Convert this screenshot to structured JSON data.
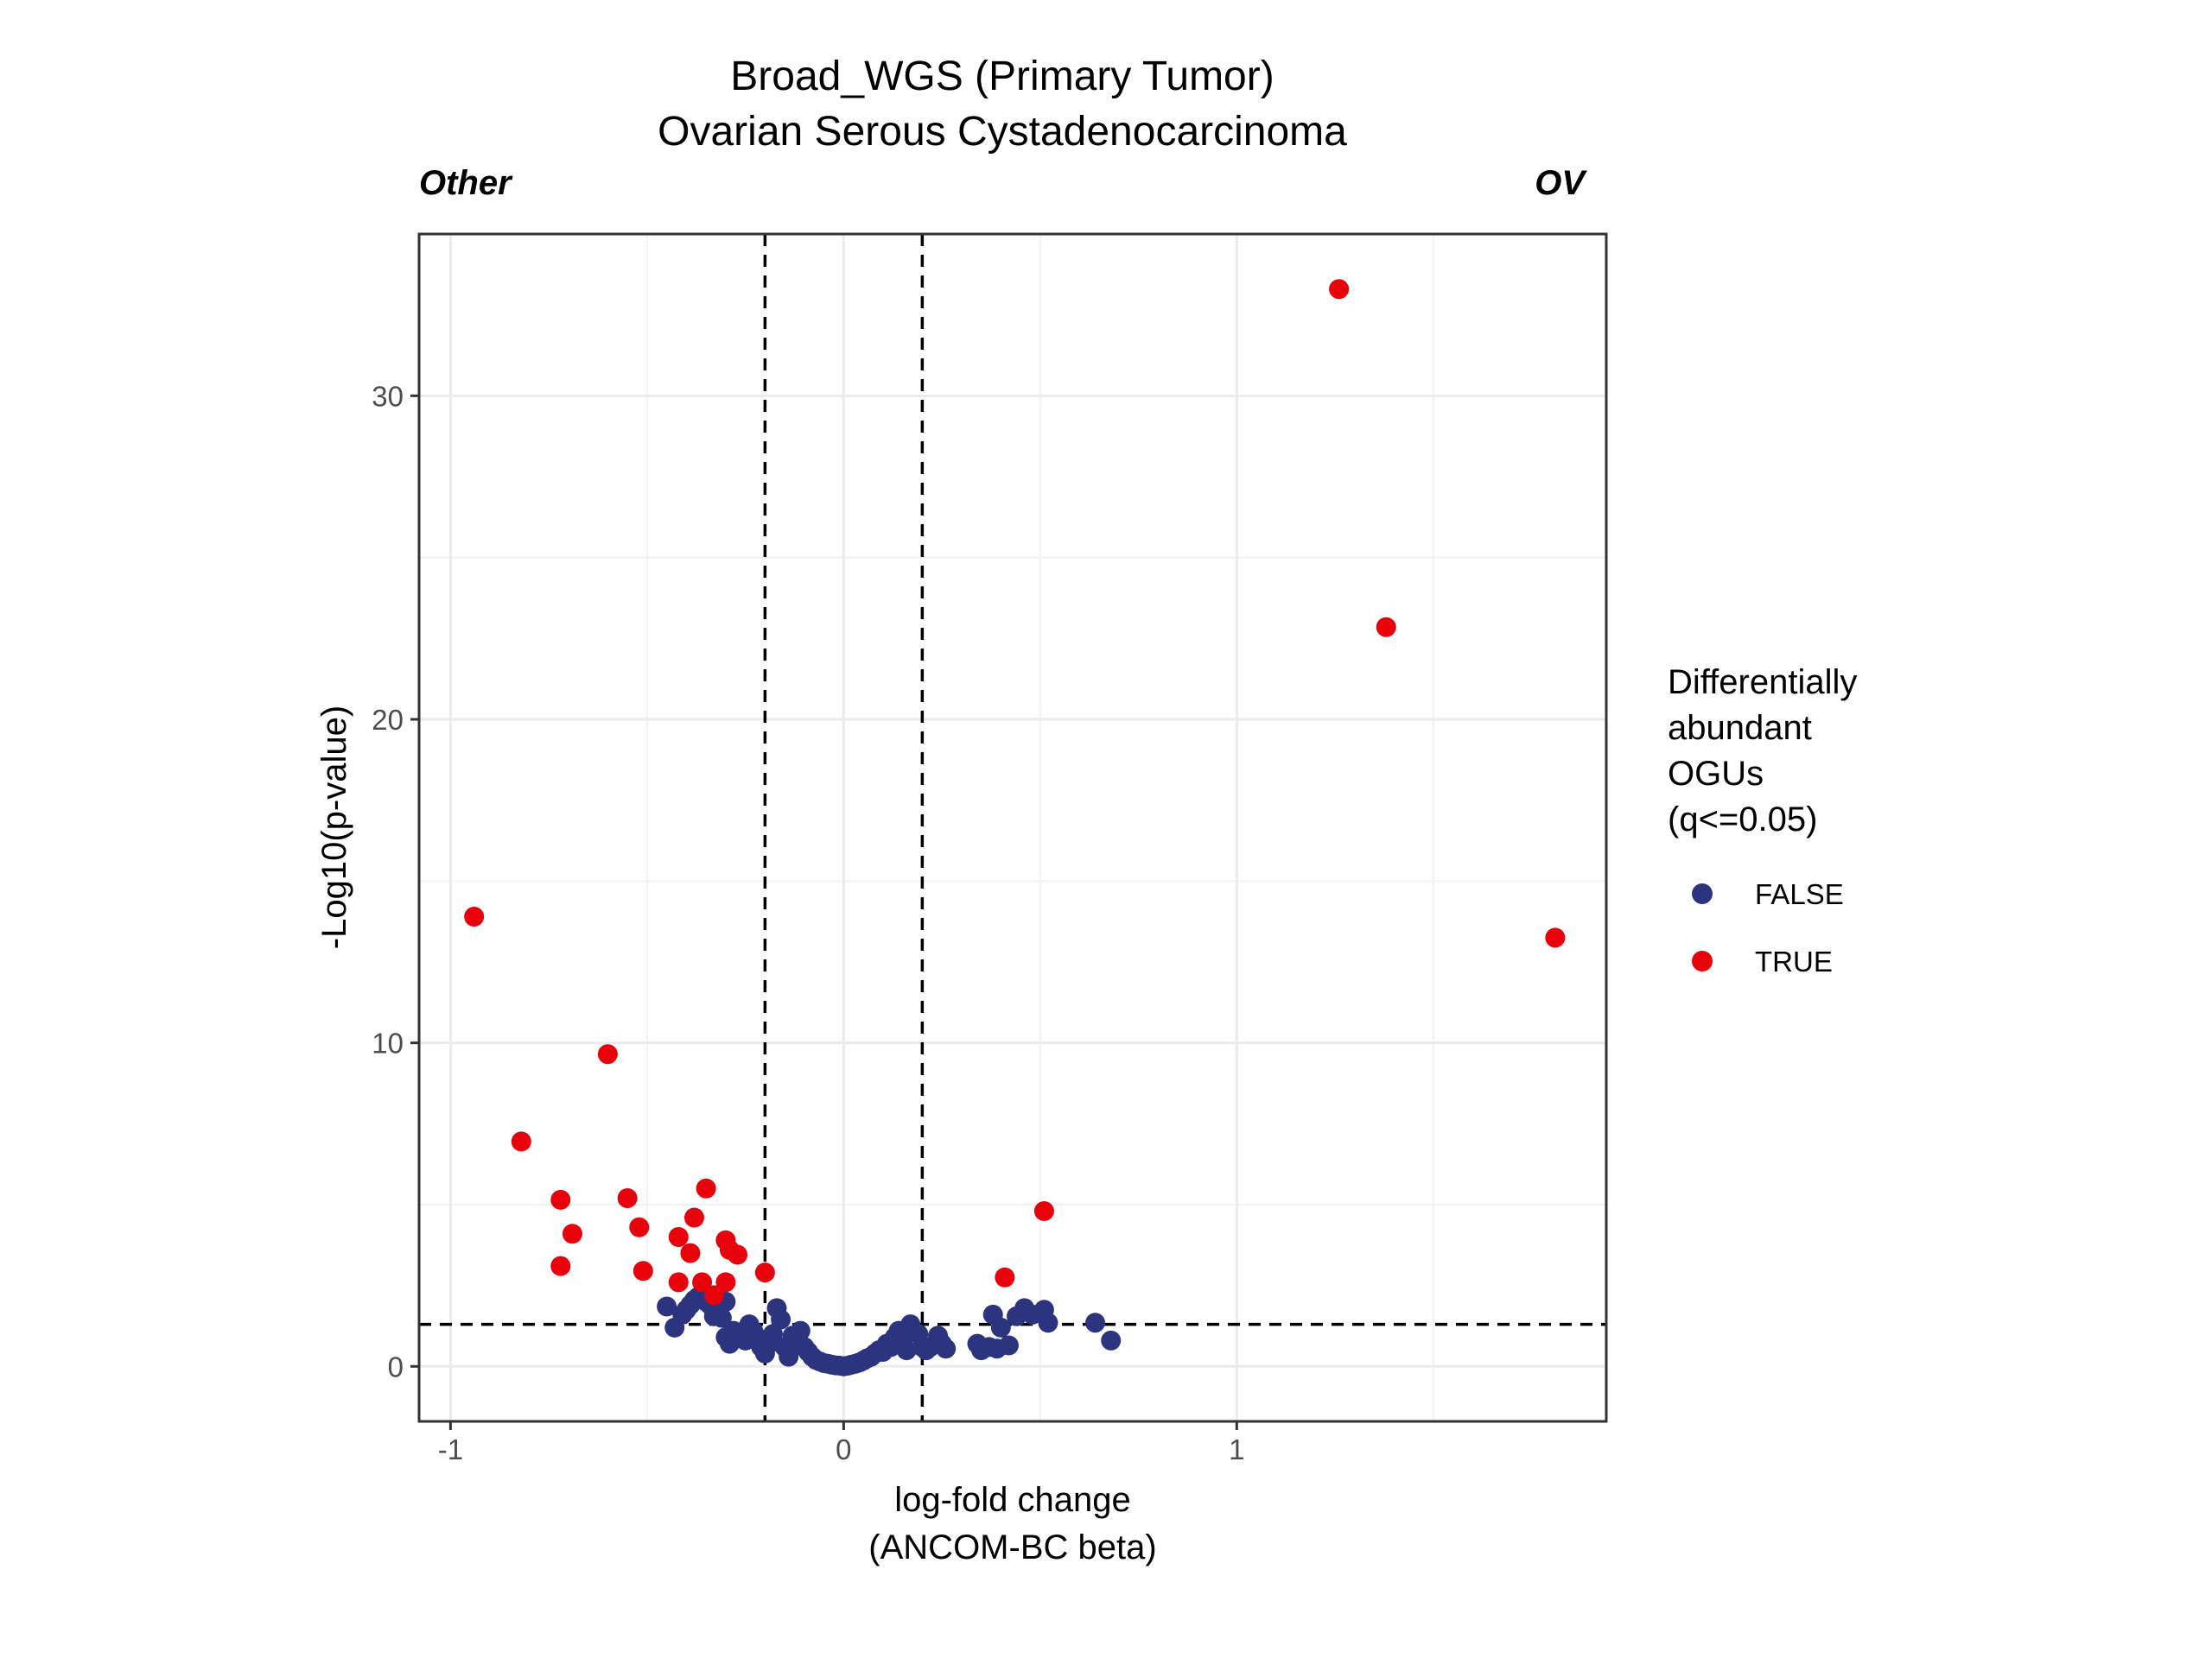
{
  "chart_data": {
    "type": "scatter",
    "title": "Broad_WGS (Primary Tumor)",
    "subtitle": "Ovarian Serous Cystadenocarcinoma",
    "left_label": "Other",
    "right_label": "OV",
    "xlabel_line1": "log-fold change",
    "xlabel_line2": "(ANCOM-BC beta)",
    "ylabel": "-Log10(p-value)",
    "xlim": [
      -1.08,
      1.94
    ],
    "ylim": [
      -1.7,
      35
    ],
    "x_ticks": [
      {
        "value": -1,
        "label": "-1"
      },
      {
        "value": 0,
        "label": "0"
      },
      {
        "value": 1,
        "label": "1"
      }
    ],
    "y_ticks": [
      {
        "value": 0,
        "label": "0"
      },
      {
        "value": 10,
        "label": "10"
      },
      {
        "value": 20,
        "label": "20"
      },
      {
        "value": 30,
        "label": "30"
      }
    ],
    "x_minor_grid": [
      -0.5,
      0.5,
      1.5
    ],
    "y_minor_grid": [
      5,
      15,
      25
    ],
    "vlines": [
      -0.2,
      0.2
    ],
    "hline": 1.3,
    "grid": true,
    "legend": {
      "title_lines": [
        "Differentially",
        "abundant",
        "OGUs",
        "(q<=0.05)"
      ],
      "position": "right",
      "items": [
        {
          "label": "FALSE",
          "color": "#2c3480"
        },
        {
          "label": "TRUE",
          "color": "#e8000b"
        }
      ]
    },
    "series": [
      {
        "name": "FALSE",
        "color": "#2c3480",
        "points": [
          [
            -0.45,
            1.85
          ],
          [
            -0.43,
            1.2
          ],
          [
            -0.41,
            1.6
          ],
          [
            -0.4,
            1.75
          ],
          [
            -0.39,
            1.9
          ],
          [
            -0.38,
            2.05
          ],
          [
            -0.37,
            2.15
          ],
          [
            -0.36,
            2.1
          ],
          [
            -0.35,
            2.0
          ],
          [
            -0.34,
            1.9
          ],
          [
            -0.33,
            1.55
          ],
          [
            -0.32,
            1.8
          ],
          [
            -0.31,
            1.5
          ],
          [
            -0.3,
            2.0
          ],
          [
            -0.3,
            0.9
          ],
          [
            -0.29,
            0.7
          ],
          [
            -0.28,
            1.1
          ],
          [
            -0.26,
            1.0
          ],
          [
            -0.25,
            0.8
          ],
          [
            -0.24,
            1.3
          ],
          [
            -0.23,
            1.1
          ],
          [
            -0.22,
            0.9
          ],
          [
            -0.21,
            0.6
          ],
          [
            -0.2,
            0.4
          ],
          [
            -0.19,
            0.7
          ],
          [
            -0.18,
            1.0
          ],
          [
            -0.17,
            1.8
          ],
          [
            -0.16,
            1.45
          ],
          [
            -0.15,
            0.6
          ],
          [
            -0.14,
            0.3
          ],
          [
            -0.13,
            0.95
          ],
          [
            -0.12,
            0.8
          ],
          [
            -0.11,
            1.1
          ],
          [
            -0.1,
            0.6
          ],
          [
            -0.09,
            0.45
          ],
          [
            -0.08,
            0.3
          ],
          [
            -0.07,
            0.2
          ],
          [
            -0.06,
            0.15
          ],
          [
            -0.05,
            0.1
          ],
          [
            -0.04,
            0.08
          ],
          [
            -0.03,
            0.05
          ],
          [
            -0.02,
            0.03
          ],
          [
            -0.01,
            0.02
          ],
          [
            0.0,
            0.0
          ],
          [
            0.01,
            0.02
          ],
          [
            0.02,
            0.05
          ],
          [
            0.03,
            0.08
          ],
          [
            0.04,
            0.12
          ],
          [
            0.05,
            0.18
          ],
          [
            0.06,
            0.25
          ],
          [
            0.07,
            0.3
          ],
          [
            0.08,
            0.4
          ],
          [
            0.09,
            0.5
          ],
          [
            0.1,
            0.45
          ],
          [
            0.11,
            0.7
          ],
          [
            0.12,
            0.6
          ],
          [
            0.13,
            0.9
          ],
          [
            0.14,
            1.1
          ],
          [
            0.15,
            0.8
          ],
          [
            0.16,
            0.5
          ],
          [
            0.17,
            1.3
          ],
          [
            0.18,
            1.05
          ],
          [
            0.19,
            1.0
          ],
          [
            0.2,
            0.6
          ],
          [
            0.21,
            0.5
          ],
          [
            0.22,
            0.6
          ],
          [
            0.24,
            0.95
          ],
          [
            0.25,
            0.7
          ],
          [
            0.26,
            0.55
          ],
          [
            0.34,
            0.7
          ],
          [
            0.35,
            0.5
          ],
          [
            0.37,
            0.6
          ],
          [
            0.38,
            1.6
          ],
          [
            0.39,
            0.55
          ],
          [
            0.4,
            1.2
          ],
          [
            0.42,
            0.65
          ],
          [
            0.44,
            1.55
          ],
          [
            0.46,
            1.8
          ],
          [
            0.48,
            1.6
          ],
          [
            0.51,
            1.75
          ],
          [
            0.52,
            1.35
          ],
          [
            0.64,
            1.35
          ],
          [
            0.68,
            0.8
          ]
        ]
      },
      {
        "name": "TRUE",
        "color": "#e8000b",
        "points": [
          [
            -0.94,
            13.9
          ],
          [
            -0.82,
            6.95
          ],
          [
            -0.72,
            5.15
          ],
          [
            -0.72,
            3.1
          ],
          [
            -0.69,
            4.1
          ],
          [
            -0.6,
            9.65
          ],
          [
            -0.55,
            5.2
          ],
          [
            -0.52,
            4.3
          ],
          [
            -0.51,
            2.95
          ],
          [
            -0.42,
            4.0
          ],
          [
            -0.42,
            2.6
          ],
          [
            -0.39,
            3.5
          ],
          [
            -0.38,
            4.6
          ],
          [
            -0.36,
            2.6
          ],
          [
            -0.35,
            5.5
          ],
          [
            -0.33,
            2.2
          ],
          [
            -0.3,
            3.9
          ],
          [
            -0.3,
            2.6
          ],
          [
            -0.29,
            3.6
          ],
          [
            -0.27,
            3.45
          ],
          [
            -0.2,
            2.9
          ],
          [
            0.41,
            2.75
          ],
          [
            0.51,
            4.8
          ],
          [
            1.26,
            33.3
          ],
          [
            1.38,
            22.85
          ],
          [
            1.81,
            13.25
          ]
        ]
      }
    ]
  }
}
